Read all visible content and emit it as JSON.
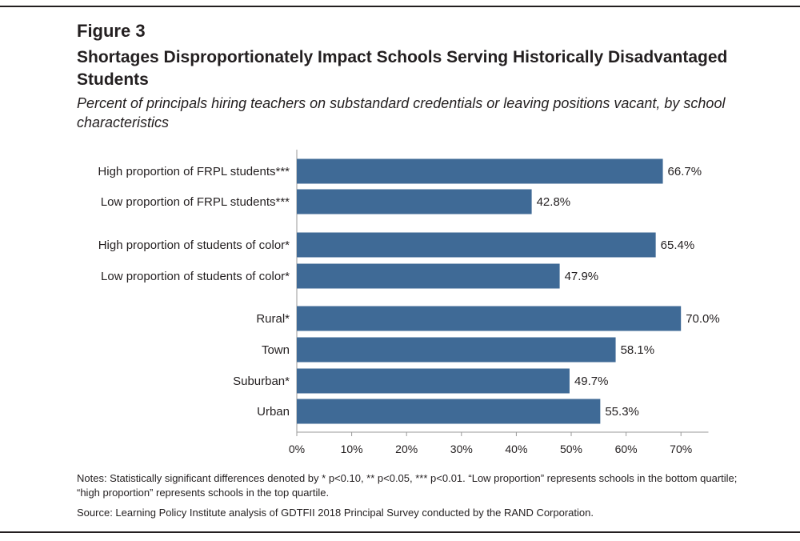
{
  "figure_label": "Figure 3",
  "title": "Shortages Disproportionately Impact Schools Serving Historically Disadvantaged Students",
  "subtitle": "Percent of principals hiring teachers on substandard credentials or leaving positions vacant, by school characteristics",
  "notes": "Notes: Statistically significant differences denoted by * p<0.10, ** p<0.05, *** p<0.01. “Low proportion” represents schools in the bottom quartile; “high proportion” represents schools in the top quartile.",
  "source": "Source: Learning Policy Institute analysis of GDTFII 2018 Principal Survey conducted by the RAND Corporation.",
  "colors": {
    "bar": "#3f6a96",
    "axis": "#9a9a9a",
    "text": "#231f20"
  },
  "chart_data": {
    "type": "bar",
    "orientation": "horizontal",
    "categories": [
      "High proportion of FRPL students***",
      "Low proportion of FRPL students***",
      "High proportion of students of color*",
      "Low proportion of students of color*",
      "Rural*",
      "Town",
      "Suburban*",
      "Urban"
    ],
    "groups": [
      [
        0,
        1
      ],
      [
        2,
        3
      ],
      [
        4,
        5,
        6,
        7
      ]
    ],
    "values": [
      66.7,
      42.8,
      65.4,
      47.9,
      70.0,
      58.1,
      49.7,
      55.3
    ],
    "value_labels": [
      "66.7%",
      "42.8%",
      "65.4%",
      "47.9%",
      "70.0%",
      "58.1%",
      "49.7%",
      "55.3%"
    ],
    "xlim": [
      0,
      75
    ],
    "xticks": [
      0,
      10,
      20,
      30,
      40,
      50,
      60,
      70
    ],
    "xtick_labels": [
      "0%",
      "10%",
      "20%",
      "30%",
      "40%",
      "50%",
      "60%",
      "70%"
    ],
    "grid": false,
    "legend": "none"
  }
}
